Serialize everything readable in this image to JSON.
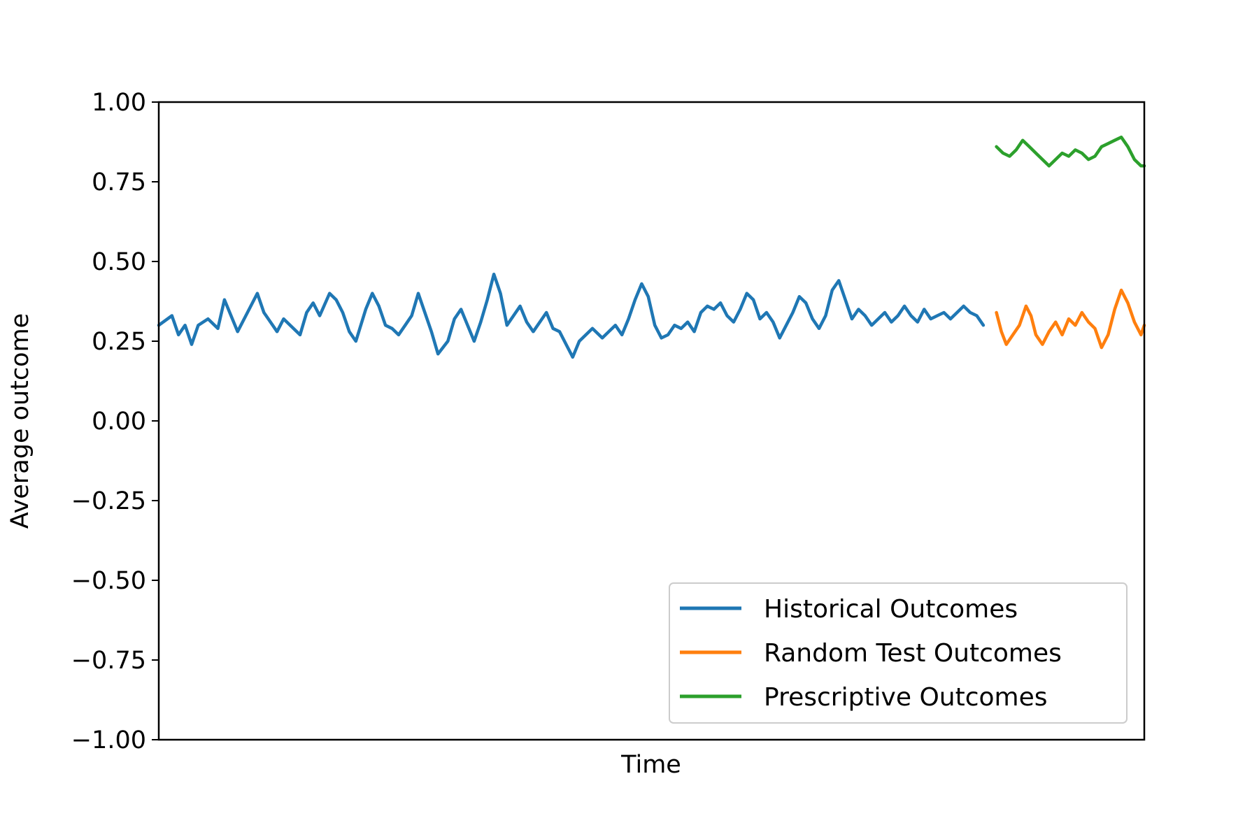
{
  "chart_data": {
    "type": "line",
    "title": "",
    "xlabel": "Time",
    "ylabel": "Average outcome",
    "ylim": [
      -1.0,
      1.0
    ],
    "yticks": [
      "1.00",
      "0.75",
      "0.50",
      "0.25",
      "0.00",
      "−0.25",
      "−0.50",
      "−0.75",
      "−1.00"
    ],
    "ytick_values": [
      1.0,
      0.75,
      0.5,
      0.25,
      0.0,
      -0.25,
      -0.5,
      -0.75,
      -1.0
    ],
    "xticks": [],
    "grid": false,
    "legend_position": "lower-right",
    "x_range": [
      0,
      600
    ],
    "series": [
      {
        "name": "Historical Outcomes",
        "color": "#1f77b4",
        "x": [
          0,
          8,
          12,
          16,
          20,
          24,
          30,
          36,
          40,
          44,
          48,
          54,
          60,
          64,
          68,
          72,
          76,
          80,
          86,
          90,
          94,
          98,
          104,
          108,
          112,
          116,
          120,
          126,
          130,
          134,
          138,
          142,
          146,
          150,
          154,
          158,
          162,
          166,
          170,
          176,
          180,
          184,
          188,
          192,
          196,
          200,
          204,
          208,
          212,
          216,
          220,
          224,
          228,
          232,
          236,
          240,
          244,
          248,
          252,
          256,
          260,
          264,
          270,
          274,
          278,
          282,
          286,
          290,
          294,
          298,
          302,
          306,
          310,
          314,
          318,
          322,
          326,
          330,
          334,
          338,
          342,
          346,
          350,
          354,
          358,
          362,
          366,
          370,
          374,
          378,
          382,
          386,
          390,
          394,
          398,
          402,
          406,
          410,
          414,
          418,
          422,
          426,
          430,
          434,
          438,
          442,
          446,
          450,
          454,
          458,
          462,
          466,
          470,
          474,
          478,
          482,
          486,
          490,
          494,
          498,
          502
        ],
        "y": [
          0.3,
          0.33,
          0.27,
          0.3,
          0.24,
          0.3,
          0.32,
          0.29,
          0.38,
          0.33,
          0.28,
          0.34,
          0.4,
          0.34,
          0.31,
          0.28,
          0.32,
          0.3,
          0.27,
          0.34,
          0.37,
          0.33,
          0.4,
          0.38,
          0.34,
          0.28,
          0.25,
          0.35,
          0.4,
          0.36,
          0.3,
          0.29,
          0.27,
          0.3,
          0.33,
          0.4,
          0.34,
          0.28,
          0.21,
          0.25,
          0.32,
          0.35,
          0.3,
          0.25,
          0.31,
          0.38,
          0.46,
          0.4,
          0.3,
          0.33,
          0.36,
          0.31,
          0.28,
          0.31,
          0.34,
          0.29,
          0.28,
          0.24,
          0.2,
          0.25,
          0.27,
          0.29,
          0.26,
          0.28,
          0.3,
          0.27,
          0.32,
          0.38,
          0.43,
          0.39,
          0.3,
          0.26,
          0.27,
          0.3,
          0.29,
          0.31,
          0.28,
          0.34,
          0.36,
          0.35,
          0.37,
          0.33,
          0.31,
          0.35,
          0.4,
          0.38,
          0.32,
          0.34,
          0.31,
          0.26,
          0.3,
          0.34,
          0.39,
          0.37,
          0.32,
          0.29,
          0.33,
          0.41,
          0.44,
          0.38,
          0.32,
          0.35,
          0.33,
          0.3,
          0.32,
          0.34,
          0.31,
          0.33,
          0.36,
          0.33,
          0.31,
          0.35,
          0.32,
          0.33,
          0.34,
          0.32,
          0.34,
          0.36,
          0.34,
          0.33,
          0.3
        ]
      },
      {
        "name": "Random Test Outcomes",
        "color": "#ff7f0e",
        "x": [
          510,
          513,
          516,
          520,
          524,
          528,
          531,
          534,
          538,
          542,
          546,
          550,
          554,
          558,
          562,
          566,
          570,
          574,
          578,
          582,
          586,
          590,
          594,
          598,
          600
        ],
        "y": [
          0.34,
          0.28,
          0.24,
          0.27,
          0.3,
          0.36,
          0.33,
          0.27,
          0.24,
          0.28,
          0.31,
          0.27,
          0.32,
          0.3,
          0.34,
          0.31,
          0.29,
          0.23,
          0.27,
          0.35,
          0.41,
          0.37,
          0.31,
          0.27,
          0.3
        ]
      },
      {
        "name": "Prescriptive Outcomes",
        "color": "#2ca02c",
        "x": [
          510,
          514,
          518,
          522,
          526,
          530,
          534,
          538,
          542,
          546,
          550,
          554,
          558,
          562,
          566,
          570,
          574,
          578,
          582,
          586,
          590,
          594,
          598,
          600
        ],
        "y": [
          0.86,
          0.84,
          0.83,
          0.85,
          0.88,
          0.86,
          0.84,
          0.82,
          0.8,
          0.82,
          0.84,
          0.83,
          0.85,
          0.84,
          0.82,
          0.83,
          0.86,
          0.87,
          0.88,
          0.89,
          0.86,
          0.82,
          0.8,
          0.8
        ]
      }
    ]
  }
}
